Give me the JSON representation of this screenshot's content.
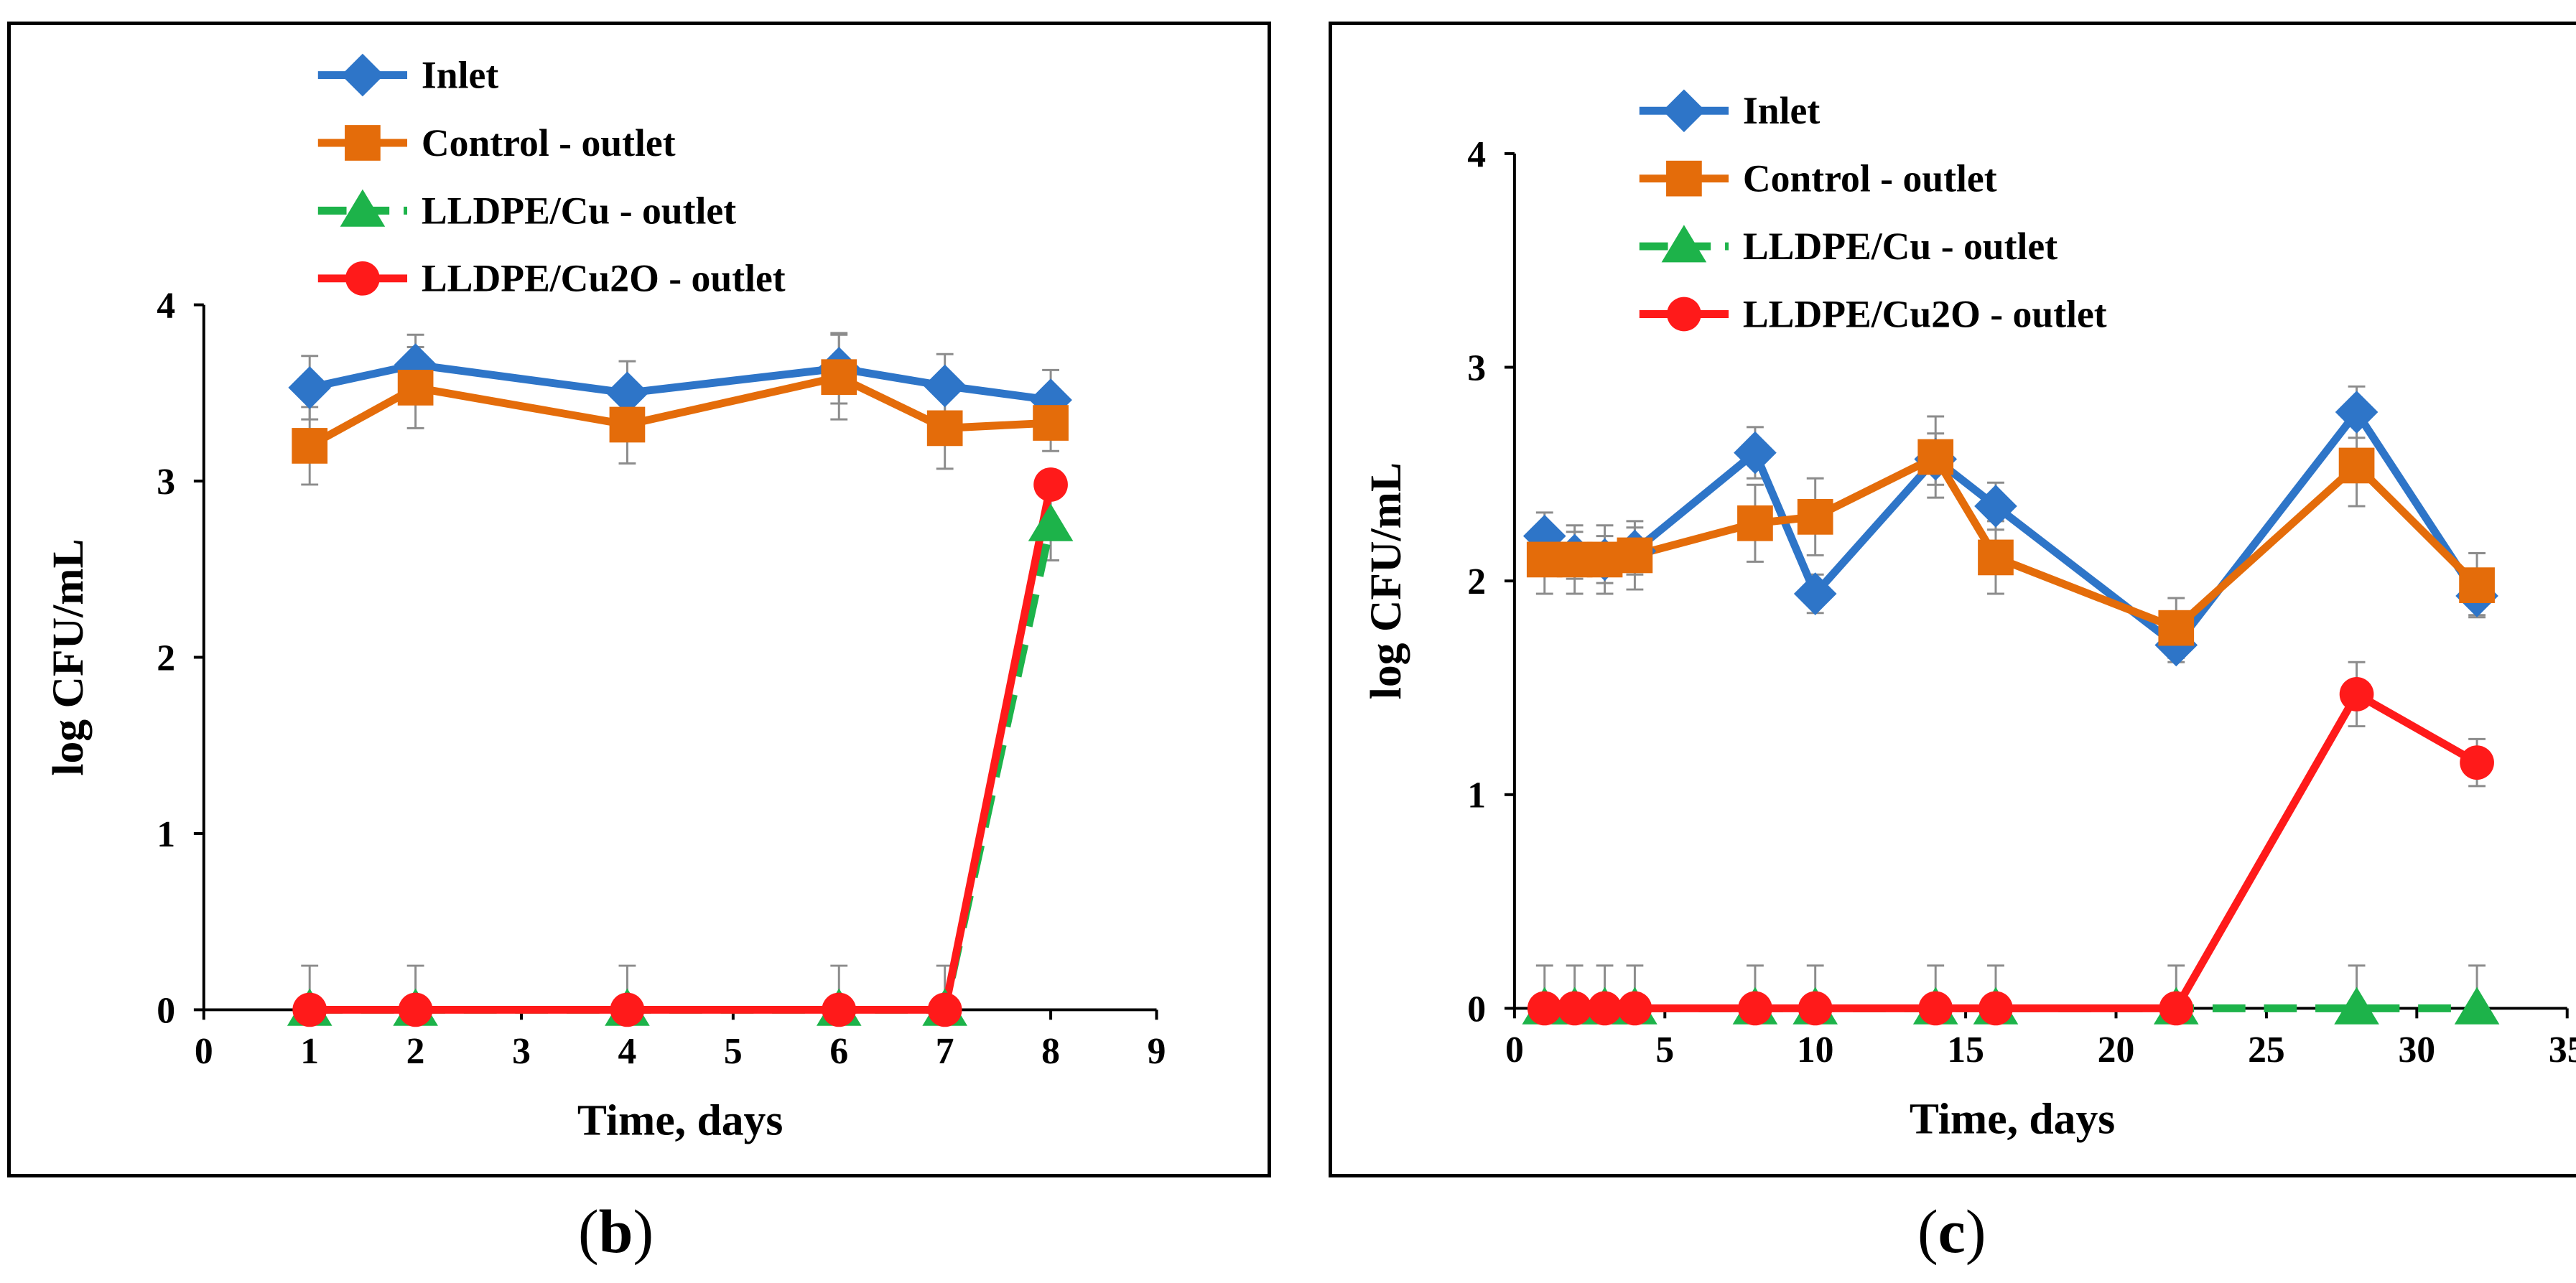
{
  "chart_data": [
    {
      "type": "line",
      "panel_label": "b",
      "xlabel": "Time, days",
      "ylabel": "log CFU/mL",
      "xlim": [
        0,
        9
      ],
      "ylim": [
        0,
        4
      ],
      "xticks": [
        0,
        1,
        2,
        3,
        4,
        5,
        6,
        7,
        8,
        9
      ],
      "yticks": [
        0,
        1,
        2,
        3,
        4
      ],
      "legend_position": "top-center",
      "series": [
        {
          "name": "Inlet",
          "color": "#2e75c8",
          "marker": "diamond",
          "dash": false,
          "x": [
            1,
            2,
            4,
            6,
            7,
            8
          ],
          "y": [
            3.53,
            3.66,
            3.5,
            3.64,
            3.54,
            3.46
          ],
          "err": [
            0.18,
            0.17,
            0.18,
            0.2,
            0.18,
            0.17
          ]
        },
        {
          "name": "Control - outlet",
          "color": "#e46c0a",
          "marker": "square",
          "dash": false,
          "x": [
            1,
            2,
            4,
            6,
            7,
            8
          ],
          "y": [
            3.2,
            3.53,
            3.32,
            3.59,
            3.3,
            3.33
          ],
          "err": [
            0.22,
            0.23,
            0.22,
            0.24,
            0.23,
            0.16
          ]
        },
        {
          "name": "LLDPE/Cu - outlet",
          "color": "#1db34a",
          "marker": "triangle",
          "dash": true,
          "x": [
            1,
            2,
            4,
            6,
            7,
            8
          ],
          "y": [
            0,
            0,
            0,
            0,
            0,
            2.75
          ],
          "err": [
            0.25,
            0.25,
            0.25,
            0.25,
            0.25,
            0.2
          ]
        },
        {
          "name": "LLDPE/Cu2O - outlet",
          "color": "#ff1a1a",
          "marker": "circle",
          "dash": false,
          "x": [
            1,
            2,
            4,
            6,
            7,
            8
          ],
          "y": [
            0,
            0,
            0,
            0,
            0,
            2.98
          ],
          "err": [
            0,
            0,
            0,
            0,
            0,
            0
          ]
        }
      ]
    },
    {
      "type": "line",
      "panel_label": "c",
      "xlabel": "Time, days",
      "ylabel": "log CFU/mL",
      "xlim": [
        0,
        35
      ],
      "ylim": [
        0,
        4
      ],
      "xticks": [
        0,
        5,
        10,
        15,
        20,
        25,
        30,
        35
      ],
      "yticks": [
        0,
        1,
        2,
        3,
        4
      ],
      "legend_position": "top-center",
      "series": [
        {
          "name": "Inlet",
          "color": "#2e75c8",
          "marker": "diamond",
          "dash": false,
          "x": [
            1,
            2,
            3,
            4,
            8,
            10,
            14,
            16,
            22,
            28,
            32
          ],
          "y": [
            2.21,
            2.12,
            2.1,
            2.14,
            2.6,
            1.94,
            2.57,
            2.35,
            1.7,
            2.79,
            1.93
          ],
          "err": [
            0.11,
            0.11,
            0.11,
            0.11,
            0.12,
            0.09,
            0.12,
            0.11,
            0.08,
            0.12,
            0.09
          ]
        },
        {
          "name": "Control - outlet",
          "color": "#e46c0a",
          "marker": "square",
          "dash": false,
          "x": [
            1,
            2,
            3,
            4,
            8,
            10,
            14,
            16,
            22,
            28,
            32
          ],
          "y": [
            2.1,
            2.1,
            2.1,
            2.12,
            2.27,
            2.3,
            2.58,
            2.11,
            1.78,
            2.54,
            1.98
          ],
          "err": [
            0.16,
            0.16,
            0.16,
            0.16,
            0.18,
            0.18,
            0.19,
            0.17,
            0.14,
            0.19,
            0.15
          ]
        },
        {
          "name": "LLDPE/Cu - outlet",
          "color": "#1db34a",
          "marker": "triangle",
          "dash": true,
          "x": [
            1,
            2,
            3,
            4,
            8,
            10,
            14,
            16,
            22,
            28,
            32
          ],
          "y": [
            0,
            0,
            0,
            0,
            0,
            0,
            0,
            0,
            0,
            0,
            0
          ],
          "err": [
            0.2,
            0.2,
            0.2,
            0.2,
            0.2,
            0.2,
            0.2,
            0.2,
            0.2,
            0.2,
            0.2
          ]
        },
        {
          "name": "LLDPE/Cu2O - outlet",
          "color": "#ff1a1a",
          "marker": "circle",
          "dash": false,
          "x": [
            1,
            2,
            3,
            4,
            8,
            10,
            14,
            16,
            22,
            28,
            32
          ],
          "y": [
            0,
            0,
            0,
            0,
            0,
            0,
            0,
            0,
            0,
            1.47,
            1.15
          ],
          "err": [
            0,
            0,
            0,
            0,
            0,
            0,
            0,
            0,
            0,
            0.15,
            0.11
          ]
        }
      ]
    }
  ]
}
